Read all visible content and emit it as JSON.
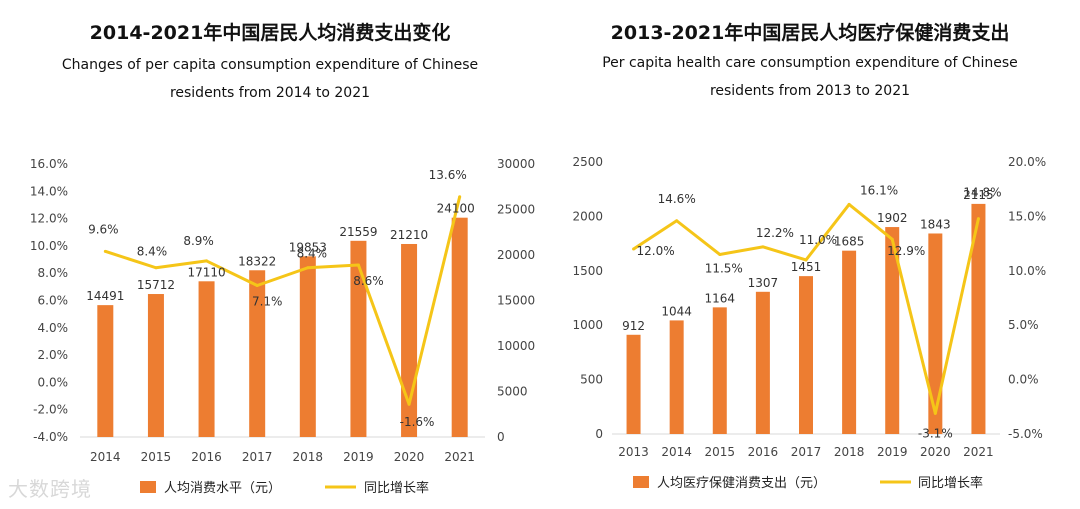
{
  "chart_data": [
    {
      "type": "bar",
      "title": "2014-2021年中国居民人均消费支出变化",
      "subtitle_line1": "Changes of per capita consumption expenditure of Chinese",
      "subtitle_line2": "residents from 2014 to 2021",
      "categories": [
        "2014",
        "2015",
        "2016",
        "2017",
        "2018",
        "2019",
        "2020",
        "2021"
      ],
      "series": [
        {
          "name": "人均消费水平（元）",
          "type": "bar",
          "axis": "right",
          "color": "#ED7D31",
          "values": [
            14491,
            15712,
            17110,
            18322,
            19853,
            21559,
            21210,
            24100
          ]
        },
        {
          "name": "同比增长率",
          "type": "line",
          "axis": "left",
          "color": "#F5C518",
          "values": [
            9.6,
            8.4,
            8.9,
            7.1,
            8.4,
            8.6,
            -1.6,
            13.6
          ]
        }
      ],
      "left_axis": {
        "min": -4,
        "max": 16,
        "step": 2,
        "format": "percent1",
        "ticks": [
          "16.0%",
          "14.0%",
          "12.0%",
          "10.0%",
          "8.0%",
          "6.0%",
          "4.0%",
          "2.0%",
          "0.0%",
          "-2.0%",
          "-4.0%"
        ]
      },
      "right_axis": {
        "min": 0,
        "max": 30000,
        "step": 5000,
        "ticks": [
          "30000",
          "25000",
          "20000",
          "15000",
          "10000",
          "5000",
          "0"
        ]
      },
      "bar_labels": [
        "14491",
        "15712",
        "17110",
        "18322",
        "19853",
        "21559",
        "21210",
        "24100"
      ],
      "line_labels": [
        "9.6%",
        "8.4%",
        "8.9%",
        "7.1%",
        "8.4%",
        "8.6%",
        "-1.6%",
        "13.6%"
      ],
      "legend": {
        "bar": "人均消费水平（元）",
        "line": "同比增长率"
      }
    },
    {
      "type": "bar",
      "title": "2013-2021年中国居民人均医疗保健消费支出",
      "subtitle_line1": "Per capita health care consumption expenditure of Chinese",
      "subtitle_line2": "residents from 2013 to 2021",
      "categories": [
        "2013",
        "2014",
        "2015",
        "2016",
        "2017",
        "2018",
        "2019",
        "2020",
        "2021"
      ],
      "series": [
        {
          "name": "人均医疗保健消费支出（元）",
          "type": "bar",
          "axis": "left",
          "color": "#ED7D31",
          "values": [
            912,
            1044,
            1164,
            1307,
            1451,
            1685,
            1902,
            1843,
            2115
          ]
        },
        {
          "name": "同比增长率",
          "type": "line",
          "axis": "right",
          "color": "#F5C518",
          "values": [
            12.0,
            14.6,
            11.5,
            12.2,
            11.0,
            16.1,
            12.9,
            -3.1,
            14.8
          ]
        }
      ],
      "left_axis": {
        "min": 0,
        "max": 2500,
        "step": 500,
        "ticks": [
          "2500",
          "2000",
          "1500",
          "1000",
          "500",
          "0"
        ]
      },
      "right_axis": {
        "min": -5,
        "max": 20,
        "step": 5,
        "ticks": [
          "20.0%",
          "15.0%",
          "10.0%",
          "5.0%",
          "0.0%",
          "-5.0%"
        ]
      },
      "bar_labels": [
        "912",
        "1044",
        "1164",
        "1307",
        "1451",
        "1685",
        "1902",
        "1843",
        "2115"
      ],
      "line_labels": [
        "12.0%",
        "14.6%",
        "11.5%",
        "12.2%",
        "11.0%",
        "16.1%",
        "12.9%",
        "-3.1%",
        "14.8%"
      ],
      "legend": {
        "bar": "人均医疗保健消费支出（元）",
        "line": "同比增长率"
      }
    }
  ],
  "watermark": "大数跨境"
}
